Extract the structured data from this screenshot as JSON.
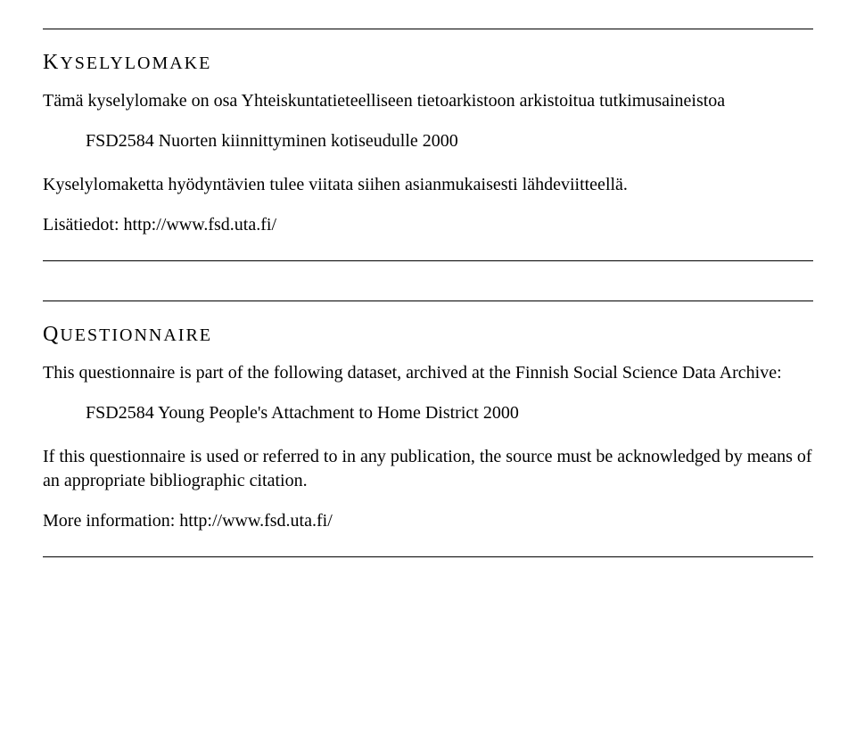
{
  "finnish": {
    "heading_first": "K",
    "heading_rest": "YSELYLOMAKE",
    "intro": "Tämä kyselylomake on osa Yhteiskuntatieteelliseen tietoarkistoon arkistoitua tutkimusaineistoa",
    "dataset": "FSD2584 Nuorten kiinnittyminen kotiseudulle 2000",
    "cite": "Kyselylomaketta hyödyntävien tulee viitata siihen asianmukaisesti lähdeviitteellä.",
    "moreinfo": "Lisätiedot: http://www.fsd.uta.fi/"
  },
  "english": {
    "heading_first": "Q",
    "heading_rest": "UESTIONNAIRE",
    "intro": "This questionnaire is part of the following dataset, archived at the Finnish Social Science Data Archive:",
    "dataset": "FSD2584 Young People's Attachment to Home District 2000",
    "cite": "If this questionnaire is used or referred to in any publication, the source must be acknowledged by means of an appropriate bibliographic citation.",
    "moreinfo": "More information: http://www.fsd.uta.fi/"
  }
}
